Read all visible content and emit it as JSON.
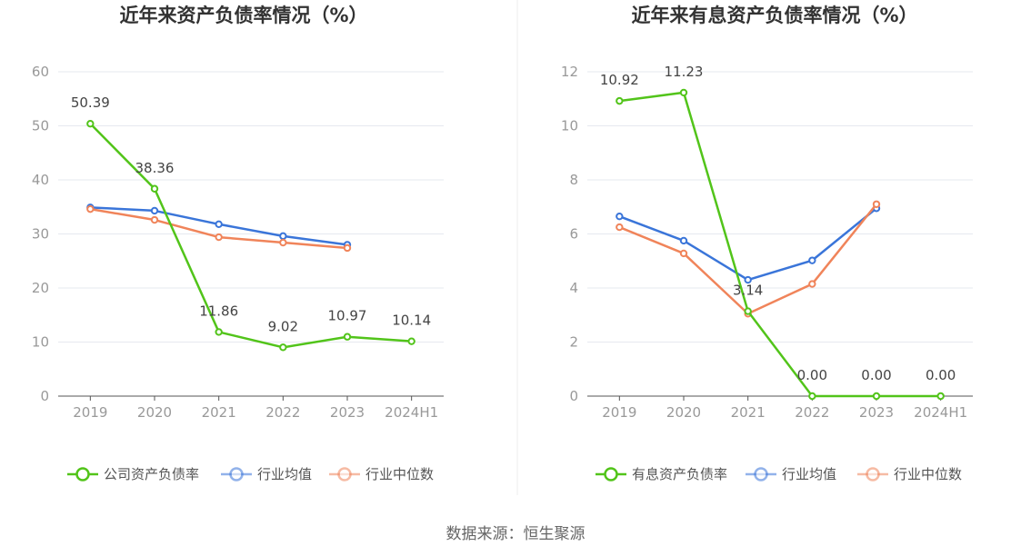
{
  "source": "数据来源：恒生聚源",
  "chart_data": [
    {
      "type": "line",
      "title": "近年来资产负债率情况（%）",
      "categories": [
        "2019",
        "2020",
        "2021",
        "2022",
        "2023",
        "2024H1"
      ],
      "ylim": [
        0,
        60
      ],
      "yticks": [
        0,
        10,
        20,
        30,
        40,
        50,
        60
      ],
      "grid": true,
      "legend_position": "bottom",
      "series": [
        {
          "name": "公司资产负债率",
          "color": "#52c41a",
          "values": [
            50.39,
            38.36,
            11.86,
            9.02,
            10.97,
            10.14
          ],
          "labels": [
            "50.39",
            "38.36",
            "11.86",
            "9.02",
            "10.97",
            "10.14"
          ]
        },
        {
          "name": "行业均值",
          "color": "#3a75d9",
          "values": [
            34.9,
            34.3,
            31.8,
            29.6,
            28.0,
            null
          ]
        },
        {
          "name": "行业中位数",
          "color": "#f0845a",
          "values": [
            34.6,
            32.6,
            29.4,
            28.4,
            27.4,
            null
          ]
        }
      ]
    },
    {
      "type": "line",
      "title": "近年来有息资产负债率情况（%）",
      "categories": [
        "2019",
        "2020",
        "2021",
        "2022",
        "2023",
        "2024H1"
      ],
      "ylim": [
        0,
        12
      ],
      "yticks": [
        0,
        2,
        4,
        6,
        8,
        10,
        12
      ],
      "grid": true,
      "legend_position": "bottom",
      "series": [
        {
          "name": "有息资产负债率",
          "color": "#52c41a",
          "values": [
            10.92,
            11.23,
            3.14,
            0.0,
            0.0,
            0.0
          ],
          "labels": [
            "10.92",
            "11.23",
            "3.14",
            "0.00",
            "0.00",
            "0.00"
          ]
        },
        {
          "name": "行业均值",
          "color": "#3a75d9",
          "values": [
            6.65,
            5.75,
            4.3,
            5.02,
            6.95,
            null
          ]
        },
        {
          "name": "行业中位数",
          "color": "#f0845a",
          "values": [
            6.25,
            5.28,
            3.05,
            4.15,
            7.1,
            null
          ]
        }
      ]
    }
  ]
}
